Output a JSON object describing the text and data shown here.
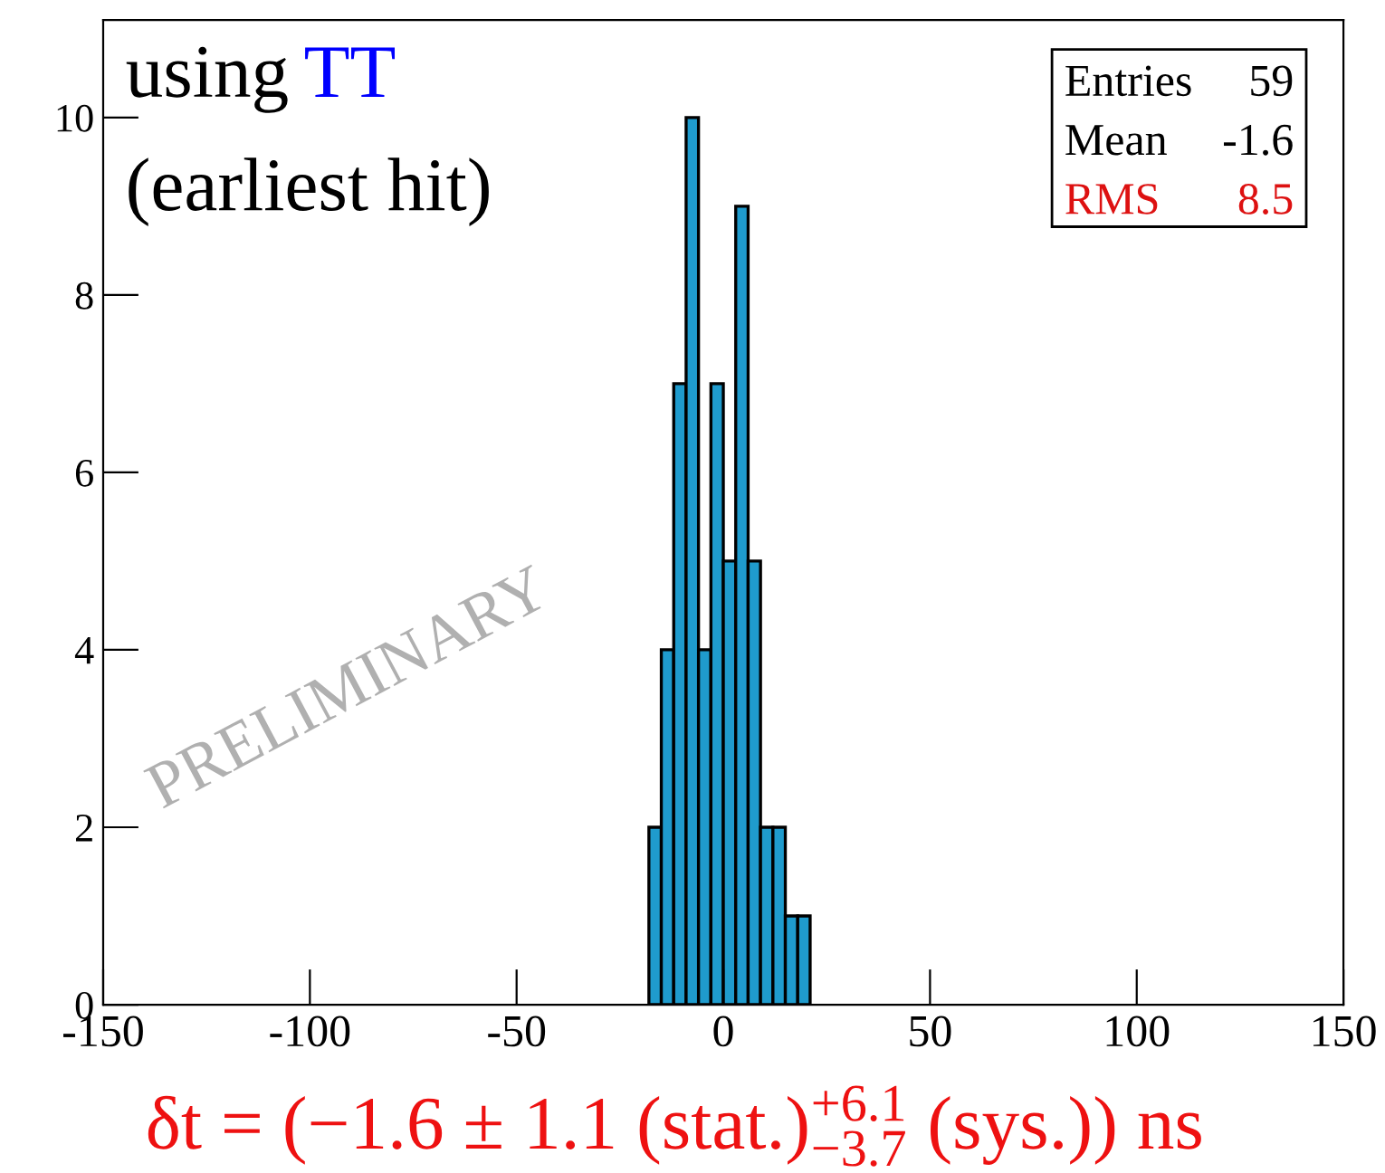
{
  "chart_data": {
    "type": "histogram",
    "bins": [
      -18,
      -15,
      -12,
      -9,
      -6,
      -3,
      0,
      3,
      6,
      9,
      12,
      15,
      18,
      21
    ],
    "values": [
      2,
      4,
      7,
      10,
      4,
      7,
      5,
      9,
      5,
      2,
      2,
      1,
      1
    ],
    "color": "#1f9bcd",
    "xlim": [
      -150,
      150
    ],
    "xticks": [
      -150,
      -100,
      -50,
      0,
      50,
      100,
      150
    ],
    "ylim": [
      0,
      11.1
    ],
    "yticks": [
      0,
      2,
      4,
      6,
      8,
      10
    ],
    "grid": false,
    "legend": false,
    "annotations": [
      "using",
      "TT",
      "(earliest hit)",
      "Entries",
      "59",
      "Mean",
      "-1.6",
      "RMS",
      "8.5",
      "PRELIMINARY",
      "δt = (−1.6 ± 1.1 (stat.)$^{+6.1}$$_{−3.7}$ (sys.)) ns"
    ]
  }
}
